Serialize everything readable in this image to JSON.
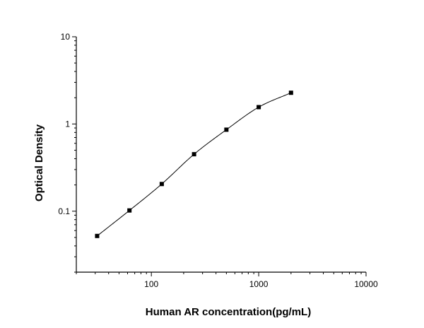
{
  "chart_data": {
    "type": "scatter",
    "title": "",
    "xlabel": "Human AR concentration(pg/mL)",
    "ylabel": "Optical Density",
    "x_scale": "log",
    "y_scale": "log",
    "xlim": [
      20,
      10000
    ],
    "ylim": [
      0.02,
      10
    ],
    "x_ticks": [
      100,
      1000,
      10000
    ],
    "x_tick_labels": [
      "100",
      "1000",
      "10000"
    ],
    "y_ticks": [
      0.1,
      1,
      10
    ],
    "y_tick_labels": [
      "0.1",
      "1",
      "10"
    ],
    "grid": false,
    "legend": "none",
    "series": [
      {
        "x": [
          31.25,
          62.5,
          125,
          250,
          500,
          1000,
          2000
        ],
        "y": [
          0.052,
          0.102,
          0.205,
          0.45,
          0.86,
          1.56,
          2.28
        ],
        "marker": "square",
        "fit_curve": true
      }
    ],
    "colors": {
      "marker": "#000000",
      "curve": "#000000",
      "axis": "#000000"
    }
  }
}
